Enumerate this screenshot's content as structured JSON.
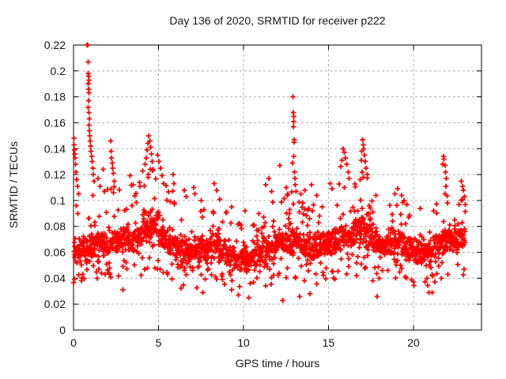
{
  "window": {
    "background": "#ffffff"
  },
  "chart_data": {
    "type": "scatter",
    "title": "Day 136 of 2020, SRMTID for receiver p222",
    "xlabel": "GPS time / hours",
    "ylabel": "SRMTID / TECUs",
    "xlim": [
      0,
      24
    ],
    "ylim": [
      0,
      0.22
    ],
    "grid": true,
    "legend": "none",
    "x_ticks": [
      {
        "v": 0,
        "label": "0"
      },
      {
        "v": 5,
        "label": "5"
      },
      {
        "v": 10,
        "label": "10"
      },
      {
        "v": 15,
        "label": "15"
      },
      {
        "v": 20,
        "label": "20"
      }
    ],
    "y_ticks": [
      {
        "v": 0,
        "label": "0"
      },
      {
        "v": 0.02,
        "label": "0.02"
      },
      {
        "v": 0.04,
        "label": "0.04"
      },
      {
        "v": 0.06,
        "label": "0.06"
      },
      {
        "v": 0.08,
        "label": "0.08"
      },
      {
        "v": 0.1,
        "label": "0.1"
      },
      {
        "v": 0.12,
        "label": "0.12"
      },
      {
        "v": 0.14,
        "label": "0.14"
      },
      {
        "v": 0.16,
        "label": "0.16"
      },
      {
        "v": 0.18,
        "label": "0.18"
      },
      {
        "v": 0.2,
        "label": "0.2"
      },
      {
        "v": 0.22,
        "label": "0.22"
      }
    ],
    "marker": {
      "symbol": "plus",
      "color": "#ff0000",
      "size": 7,
      "stroke_width": 1.8
    },
    "frame_color": "#000000",
    "grid_color": "#b0b0b0",
    "text_color": "#141414",
    "data_start_hour": 0,
    "data_end_hour": 23.05,
    "band_segments": [
      [
        0.0,
        0.5,
        40,
        0.033,
        0.06,
        0.1
      ],
      [
        0.5,
        1.0,
        40,
        0.035,
        0.062,
        0.105
      ],
      [
        1.0,
        1.5,
        40,
        0.035,
        0.065,
        0.11
      ],
      [
        1.5,
        2.0,
        40,
        0.038,
        0.066,
        0.108
      ],
      [
        2.0,
        2.5,
        40,
        0.04,
        0.068,
        0.112
      ],
      [
        2.5,
        3.0,
        40,
        0.04,
        0.07,
        0.11
      ],
      [
        3.0,
        3.5,
        40,
        0.042,
        0.07,
        0.112
      ],
      [
        3.5,
        4.0,
        40,
        0.042,
        0.072,
        0.118
      ],
      [
        4.0,
        4.5,
        42,
        0.045,
        0.078,
        0.13
      ],
      [
        4.5,
        5.0,
        42,
        0.045,
        0.078,
        0.128
      ],
      [
        5.0,
        5.5,
        40,
        0.042,
        0.072,
        0.12
      ],
      [
        5.5,
        6.0,
        40,
        0.038,
        0.066,
        0.108
      ],
      [
        6.0,
        6.5,
        40,
        0.032,
        0.06,
        0.095
      ],
      [
        6.5,
        7.0,
        40,
        0.03,
        0.058,
        0.098
      ],
      [
        7.0,
        7.5,
        40,
        0.03,
        0.06,
        0.1
      ],
      [
        7.5,
        8.0,
        40,
        0.033,
        0.063,
        0.1
      ],
      [
        8.0,
        8.5,
        40,
        0.035,
        0.066,
        0.105
      ],
      [
        8.5,
        9.0,
        40,
        0.033,
        0.062,
        0.096
      ],
      [
        9.0,
        9.5,
        40,
        0.03,
        0.058,
        0.09
      ],
      [
        9.5,
        10.0,
        40,
        0.028,
        0.055,
        0.085
      ],
      [
        10.0,
        10.5,
        40,
        0.026,
        0.054,
        0.084
      ],
      [
        10.5,
        11.0,
        40,
        0.03,
        0.057,
        0.088
      ],
      [
        11.0,
        11.5,
        40,
        0.032,
        0.06,
        0.098
      ],
      [
        11.5,
        12.0,
        40,
        0.034,
        0.063,
        0.1
      ],
      [
        12.0,
        12.5,
        40,
        0.035,
        0.066,
        0.105
      ],
      [
        12.5,
        13.0,
        40,
        0.035,
        0.068,
        0.11
      ],
      [
        13.0,
        13.5,
        40,
        0.035,
        0.066,
        0.108
      ],
      [
        13.5,
        14.0,
        40,
        0.032,
        0.062,
        0.1
      ],
      [
        14.0,
        14.5,
        40,
        0.033,
        0.062,
        0.098
      ],
      [
        14.5,
        15.0,
        40,
        0.035,
        0.065,
        0.102
      ],
      [
        15.0,
        15.5,
        40,
        0.038,
        0.068,
        0.108
      ],
      [
        15.5,
        16.0,
        40,
        0.04,
        0.072,
        0.115
      ],
      [
        16.0,
        16.5,
        40,
        0.04,
        0.073,
        0.115
      ],
      [
        16.5,
        17.0,
        42,
        0.042,
        0.076,
        0.122
      ],
      [
        17.0,
        17.5,
        42,
        0.042,
        0.076,
        0.12
      ],
      [
        17.5,
        18.0,
        40,
        0.038,
        0.068,
        0.105
      ],
      [
        18.0,
        18.5,
        40,
        0.038,
        0.065,
        0.1
      ],
      [
        18.5,
        19.0,
        40,
        0.04,
        0.068,
        0.104
      ],
      [
        19.0,
        19.5,
        40,
        0.04,
        0.068,
        0.105
      ],
      [
        19.5,
        20.0,
        40,
        0.035,
        0.063,
        0.096
      ],
      [
        20.0,
        20.5,
        40,
        0.032,
        0.06,
        0.092
      ],
      [
        20.5,
        21.0,
        40,
        0.033,
        0.06,
        0.094
      ],
      [
        21.0,
        21.5,
        40,
        0.035,
        0.063,
        0.098
      ],
      [
        21.5,
        22.0,
        40,
        0.038,
        0.068,
        0.108
      ],
      [
        22.0,
        22.5,
        40,
        0.038,
        0.068,
        0.105
      ],
      [
        22.5,
        23.05,
        44,
        0.042,
        0.07,
        0.105
      ]
    ],
    "peak_points": [
      [
        0.02,
        0.148
      ],
      [
        0.03,
        0.143
      ],
      [
        0.05,
        0.139
      ],
      [
        0.07,
        0.136
      ],
      [
        0.09,
        0.133
      ],
      [
        0.11,
        0.128
      ],
      [
        0.14,
        0.122
      ],
      [
        0.18,
        0.116
      ],
      [
        0.23,
        0.111
      ],
      [
        0.3,
        0.105
      ],
      [
        0.78,
        0.22
      ],
      [
        0.83,
        0.22
      ],
      [
        0.85,
        0.207
      ],
      [
        0.86,
        0.198
      ],
      [
        0.88,
        0.196
      ],
      [
        0.9,
        0.193
      ],
      [
        0.87,
        0.19
      ],
      [
        0.89,
        0.186
      ],
      [
        0.91,
        0.183
      ],
      [
        0.88,
        0.177
      ],
      [
        0.87,
        0.172
      ],
      [
        0.9,
        0.168
      ],
      [
        0.92,
        0.163
      ],
      [
        0.9,
        0.158
      ],
      [
        0.93,
        0.154
      ],
      [
        0.95,
        0.15
      ],
      [
        0.97,
        0.146
      ],
      [
        1.0,
        0.142
      ],
      [
        1.03,
        0.138
      ],
      [
        1.07,
        0.134
      ],
      [
        1.1,
        0.13
      ],
      [
        1.13,
        0.125
      ],
      [
        1.17,
        0.12
      ],
      [
        1.22,
        0.115
      ],
      [
        1.45,
        0.117
      ],
      [
        1.55,
        0.111
      ],
      [
        1.75,
        0.124
      ],
      [
        1.82,
        0.107
      ],
      [
        2.18,
        0.146
      ],
      [
        2.21,
        0.138
      ],
      [
        2.24,
        0.133
      ],
      [
        2.27,
        0.129
      ],
      [
        2.31,
        0.125
      ],
      [
        2.35,
        0.121
      ],
      [
        2.4,
        0.115
      ],
      [
        2.9,
        0.031
      ],
      [
        3.32,
        0.119
      ],
      [
        3.5,
        0.112
      ],
      [
        4.22,
        0.128
      ],
      [
        4.27,
        0.133
      ],
      [
        4.32,
        0.139
      ],
      [
        4.37,
        0.144
      ],
      [
        4.43,
        0.15
      ],
      [
        4.48,
        0.146
      ],
      [
        4.53,
        0.141
      ],
      [
        4.58,
        0.136
      ],
      [
        4.63,
        0.13
      ],
      [
        4.5,
        0.124
      ],
      [
        4.4,
        0.12
      ],
      [
        4.68,
        0.124
      ],
      [
        4.95,
        0.135
      ],
      [
        5.03,
        0.13
      ],
      [
        5.12,
        0.125
      ],
      [
        5.22,
        0.119
      ],
      [
        5.3,
        0.113
      ],
      [
        5.85,
        0.12
      ],
      [
        5.9,
        0.113
      ],
      [
        6.5,
        0.108
      ],
      [
        6.62,
        0.103
      ],
      [
        7.08,
        0.11
      ],
      [
        7.15,
        0.105
      ],
      [
        7.5,
        0.1
      ],
      [
        7.6,
        0.029
      ],
      [
        8.28,
        0.113
      ],
      [
        8.42,
        0.108
      ],
      [
        8.6,
        0.101
      ],
      [
        9.3,
        0.095
      ],
      [
        9.7,
        0.027
      ],
      [
        10.1,
        0.092
      ],
      [
        10.3,
        0.025
      ],
      [
        10.9,
        0.09
      ],
      [
        11.3,
        0.112
      ],
      [
        11.48,
        0.117
      ],
      [
        11.65,
        0.107
      ],
      [
        12.15,
        0.127
      ],
      [
        12.3,
        0.023
      ],
      [
        12.5,
        0.11
      ],
      [
        12.6,
        0.105
      ],
      [
        12.88,
        0.129
      ],
      [
        12.9,
        0.18
      ],
      [
        12.93,
        0.168
      ],
      [
        12.95,
        0.165
      ],
      [
        12.96,
        0.161
      ],
      [
        12.94,
        0.157
      ],
      [
        12.98,
        0.147
      ],
      [
        12.97,
        0.145
      ],
      [
        12.96,
        0.134
      ],
      [
        12.99,
        0.122
      ],
      [
        13.02,
        0.117
      ],
      [
        13.05,
        0.112
      ],
      [
        13.3,
        0.026
      ],
      [
        13.6,
        0.108
      ],
      [
        13.9,
        0.028
      ],
      [
        14.0,
        0.112
      ],
      [
        14.3,
        0.104
      ],
      [
        15.1,
        0.113
      ],
      [
        15.2,
        0.109
      ],
      [
        15.72,
        0.126
      ],
      [
        15.78,
        0.131
      ],
      [
        15.85,
        0.14
      ],
      [
        15.93,
        0.137
      ],
      [
        16.0,
        0.133
      ],
      [
        16.08,
        0.128
      ],
      [
        16.16,
        0.122
      ],
      [
        16.22,
        0.117
      ],
      [
        16.85,
        0.116
      ],
      [
        16.92,
        0.131
      ],
      [
        16.96,
        0.138
      ],
      [
        16.98,
        0.122
      ],
      [
        17.0,
        0.147
      ],
      [
        17.04,
        0.143
      ],
      [
        17.08,
        0.14
      ],
      [
        17.12,
        0.135
      ],
      [
        17.17,
        0.13
      ],
      [
        17.22,
        0.125
      ],
      [
        17.27,
        0.12
      ],
      [
        17.05,
        0.118
      ],
      [
        17.8,
        0.104
      ],
      [
        17.85,
        0.026
      ],
      [
        18.9,
        0.105
      ],
      [
        19.08,
        0.109
      ],
      [
        19.3,
        0.104
      ],
      [
        19.45,
        0.1
      ],
      [
        19.6,
        0.097
      ],
      [
        20.4,
        0.094
      ],
      [
        20.9,
        0.029
      ],
      [
        21.1,
        0.029
      ],
      [
        21.72,
        0.128
      ],
      [
        21.76,
        0.134
      ],
      [
        21.8,
        0.132
      ],
      [
        21.85,
        0.127
      ],
      [
        21.89,
        0.122
      ],
      [
        21.93,
        0.117
      ],
      [
        21.9,
        0.111
      ],
      [
        21.87,
        0.105
      ],
      [
        22.0,
        0.098
      ],
      [
        22.82,
        0.115
      ],
      [
        22.88,
        0.111
      ],
      [
        22.93,
        0.108
      ],
      [
        23.0,
        0.103
      ],
      [
        23.05,
        0.097
      ]
    ],
    "generator": {
      "seed": 136,
      "core_width": 0.55,
      "upper_tail_p": 0.16,
      "lower_tail_p": 0.07,
      "upper_tail_exp": 1.7
    }
  }
}
